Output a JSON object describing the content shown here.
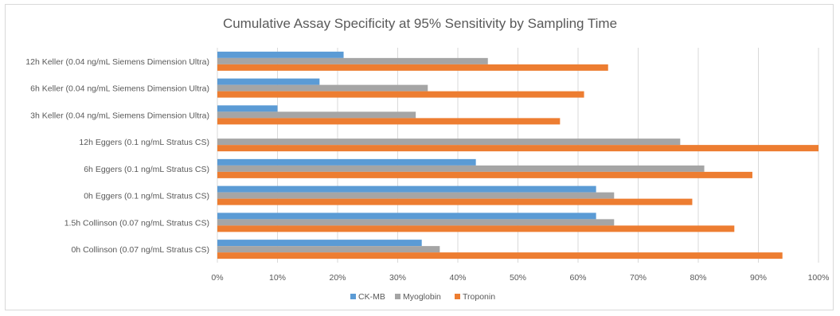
{
  "chart_data": {
    "type": "bar",
    "orientation": "horizontal",
    "title": "Cumulative Assay Specificity at 95% Sensitivity by Sampling Time",
    "xlabel": "",
    "ylabel": "",
    "xlim": [
      0,
      100
    ],
    "x_ticks": [
      "0%",
      "10%",
      "20%",
      "30%",
      "40%",
      "50%",
      "60%",
      "70%",
      "80%",
      "90%",
      "100%"
    ],
    "grid": "vertical",
    "legend_position": "bottom",
    "categories": [
      "12h Keller (0.04 ng/mL Siemens Dimension Ultra)",
      "6h Keller (0.04 ng/mL Siemens Dimension Ultra)",
      "3h Keller (0.04 ng/mL Siemens Dimension Ultra)",
      "12h Eggers (0.1 ng/mL Stratus CS)",
      "6h Eggers (0.1 ng/mL Stratus CS)",
      "0h Eggers (0.1 ng/mL Stratus CS)",
      "1.5h Collinson (0.07 ng/mL Stratus CS)",
      "0h Collinson (0.07 ng/mL Stratus CS)"
    ],
    "series": [
      {
        "name": "CK-MB",
        "color": "#5b9bd5",
        "values": [
          21,
          17,
          10,
          0,
          43,
          63,
          63,
          34
        ]
      },
      {
        "name": "Myoglobin",
        "color": "#a5a5a5",
        "values": [
          45,
          35,
          33,
          77,
          81,
          66,
          66,
          37
        ]
      },
      {
        "name": "Troponin",
        "color": "#ed7d31",
        "values": [
          65,
          61,
          57,
          100,
          89,
          79,
          86,
          94
        ]
      }
    ]
  }
}
